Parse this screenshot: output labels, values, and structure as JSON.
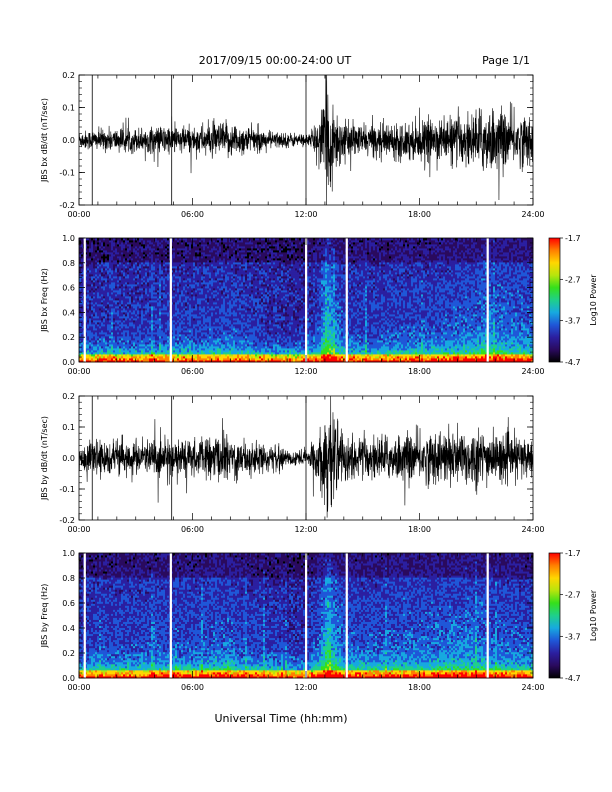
{
  "header": {
    "date_title": "2017/09/15  00:00-24:00 UT",
    "page_label": "Page 1/1"
  },
  "colors": {
    "trace": "#000000",
    "colormap": [
      "#000000",
      "#2a0a5e",
      "#2b1fa0",
      "#1f57d8",
      "#17a9e0",
      "#1fd08a",
      "#35e01b",
      "#b7e50d",
      "#ffd700",
      "#ff7f00",
      "#ff0000"
    ]
  },
  "chart_data": [
    {
      "type": "line",
      "name": "bx-waveform",
      "ylabel": "JBS bx dB/dt (nT/sec)",
      "ylim": [
        -0.2,
        0.2
      ],
      "yticks": [
        "-0.2",
        "-0.1",
        "0.0",
        "0.1",
        "0.2"
      ],
      "xlim": [
        "00:00",
        "24:00"
      ],
      "xticks": [
        "00:00",
        "06:00",
        "12:00",
        "18:00",
        "24:00"
      ],
      "spikes_hours": [
        0.7,
        4.9,
        12.0
      ],
      "envelope": {
        "hours": [
          0,
          1,
          2,
          3,
          4,
          5,
          6,
          7,
          8,
          9,
          10,
          11,
          12,
          12.7,
          13.1,
          13.5,
          14,
          15,
          16,
          17,
          18,
          19,
          20,
          21,
          21.5,
          22,
          23,
          24
        ],
        "amplitude": [
          0.03,
          0.035,
          0.04,
          0.04,
          0.045,
          0.05,
          0.045,
          0.055,
          0.06,
          0.045,
          0.03,
          0.025,
          0.02,
          0.06,
          0.2,
          0.12,
          0.06,
          0.05,
          0.055,
          0.06,
          0.065,
          0.07,
          0.08,
          0.09,
          0.12,
          0.1,
          0.09,
          0.08
        ]
      }
    },
    {
      "type": "heatmap",
      "name": "bx-spectrogram",
      "ylabel": "JBS bx Freq (Hz)",
      "ylim": [
        0.0,
        1.0
      ],
      "yticks": [
        "0.0",
        "0.2",
        "0.4",
        "0.6",
        "0.8",
        "1.0"
      ],
      "xlim": [
        "00:00",
        "24:00"
      ],
      "xticks": [
        "00:00",
        "06:00",
        "12:00",
        "18:00",
        "24:00"
      ],
      "gaps_hours": [
        0.3,
        4.85,
        12.0,
        14.15,
        21.6
      ],
      "colorbar": {
        "label": "Log10 Power",
        "range": [
          -4.7,
          -1.7
        ],
        "ticks": [
          "-1.7",
          "-2.7",
          "-3.7",
          "-4.7"
        ]
      }
    },
    {
      "type": "line",
      "name": "by-waveform",
      "ylabel": "JBS by dB/dt (nT/sec)",
      "ylim": [
        -0.2,
        0.2
      ],
      "yticks": [
        "-0.2",
        "-0.1",
        "0.0",
        "0.1",
        "0.2"
      ],
      "xlim": [
        "00:00",
        "24:00"
      ],
      "xticks": [
        "00:00",
        "06:00",
        "12:00",
        "18:00",
        "24:00"
      ],
      "spikes_hours": [
        0.7,
        4.9,
        12.0
      ],
      "envelope": {
        "hours": [
          0,
          1,
          2,
          3,
          4,
          5,
          6,
          7,
          8,
          9,
          10,
          11,
          12,
          12.7,
          13.1,
          13.5,
          14,
          15,
          16,
          17,
          18,
          19,
          20,
          21,
          21.5,
          22,
          23,
          24
        ],
        "amplitude": [
          0.045,
          0.055,
          0.06,
          0.06,
          0.065,
          0.07,
          0.06,
          0.075,
          0.08,
          0.06,
          0.045,
          0.03,
          0.03,
          0.08,
          0.2,
          0.14,
          0.08,
          0.07,
          0.075,
          0.08,
          0.085,
          0.09,
          0.1,
          0.1,
          0.09,
          0.08,
          0.075,
          0.07
        ]
      }
    },
    {
      "type": "heatmap",
      "name": "by-spectrogram",
      "ylabel": "JBS by Freq (Hz)",
      "ylim": [
        0.0,
        1.0
      ],
      "yticks": [
        "0.0",
        "0.2",
        "0.4",
        "0.6",
        "0.8",
        "1.0"
      ],
      "xlim": [
        "00:00",
        "24:00"
      ],
      "xticks": [
        "00:00",
        "06:00",
        "12:00",
        "18:00",
        "24:00"
      ],
      "gaps_hours": [
        0.3,
        4.85,
        12.0,
        14.15,
        21.6
      ],
      "colorbar": {
        "label": "Log10 Power",
        "range": [
          -4.7,
          -1.7
        ],
        "ticks": [
          "-1.7",
          "-2.7",
          "-3.7",
          "-4.7"
        ]
      }
    }
  ],
  "xaxis": {
    "label": "Universal Time (hh:mm)"
  }
}
